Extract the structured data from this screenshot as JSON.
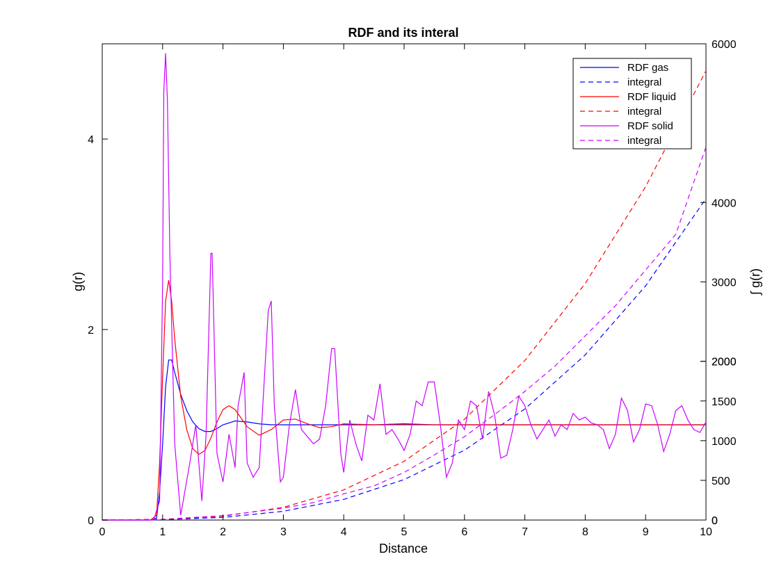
{
  "chart_data": {
    "type": "line",
    "title": "RDF and its interal",
    "xlabel": "Distance",
    "ylabel_left": "g(r)",
    "ylabel_right": "∫ g(r)",
    "xlim": [
      0,
      10
    ],
    "ylim_left": [
      0,
      5
    ],
    "ylim_right": [
      0,
      6000
    ],
    "x_ticks": [
      "0",
      "1",
      "2",
      "3",
      "4",
      "5",
      "6",
      "7",
      "8",
      "9",
      "10"
    ],
    "y_left_ticks": [
      "0",
      "2",
      "4"
    ],
    "y_right_ticks": [
      "0",
      "0",
      "500",
      "1000",
      "1500",
      "2000",
      "2000",
      "3000",
      "4000",
      "6000"
    ],
    "grid": false,
    "legend_position": "top-right",
    "series": [
      {
        "name": "RDF gas",
        "axis": "left",
        "style": "solid",
        "color": "#0000ff",
        "x": [
          0,
          0.8,
          0.9,
          0.95,
          1.0,
          1.05,
          1.1,
          1.15,
          1.2,
          1.3,
          1.4,
          1.5,
          1.6,
          1.7,
          1.8,
          1.9,
          2.0,
          2.2,
          2.4,
          2.6,
          2.8,
          3.0,
          3.5,
          4.0,
          4.5,
          5.0,
          5.5,
          6,
          7,
          8,
          9,
          10
        ],
        "y": [
          0,
          0,
          0.02,
          0.3,
          0.8,
          1.4,
          1.68,
          1.68,
          1.55,
          1.32,
          1.15,
          1.03,
          0.96,
          0.93,
          0.93,
          0.96,
          1.0,
          1.04,
          1.03,
          1.01,
          1.0,
          1.0,
          1.0,
          1.0,
          1.0,
          1.01,
          1.0,
          1.0,
          1.0,
          1.0,
          1.0,
          1.0
        ]
      },
      {
        "name": "integral",
        "axis": "right",
        "style": "dashed",
        "color": "#0000ff",
        "x": [
          0,
          1,
          2,
          3,
          4,
          5,
          6,
          7,
          8,
          9,
          10
        ],
        "y": [
          0,
          4,
          33,
          110,
          260,
          510,
          880,
          1400,
          2080,
          2950,
          4050
        ]
      },
      {
        "name": "RDF liquid",
        "axis": "left",
        "style": "solid",
        "color": "#ff0000",
        "x": [
          0,
          0.8,
          0.9,
          0.95,
          1.0,
          1.05,
          1.1,
          1.15,
          1.2,
          1.3,
          1.4,
          1.5,
          1.6,
          1.7,
          1.8,
          1.9,
          2.0,
          2.1,
          2.2,
          2.4,
          2.6,
          2.8,
          3.0,
          3.2,
          3.4,
          3.6,
          3.8,
          4.0,
          4.5,
          5.0,
          6,
          7,
          8,
          9,
          10
        ],
        "y": [
          0,
          0,
          0.05,
          0.6,
          1.5,
          2.3,
          2.52,
          2.3,
          1.9,
          1.3,
          0.95,
          0.75,
          0.69,
          0.73,
          0.86,
          1.03,
          1.16,
          1.2,
          1.16,
          0.98,
          0.89,
          0.95,
          1.05,
          1.06,
          1.01,
          0.97,
          0.98,
          1.01,
          1.0,
          1.0,
          1.0,
          1.0,
          1.0,
          1.0,
          1.0
        ]
      },
      {
        "name": "integral",
        "axis": "right",
        "style": "dashed",
        "color": "#ff0000",
        "x": [
          0,
          1,
          2,
          3,
          4,
          5,
          6,
          7,
          8,
          9,
          10
        ],
        "y": [
          0,
          8,
          48,
          160,
          380,
          740,
          1270,
          2010,
          2980,
          4200,
          5660
        ]
      },
      {
        "name": "RDF solid",
        "axis": "left",
        "style": "solid",
        "color": "#cc00ff",
        "x": [
          0,
          0.85,
          0.95,
          1.0,
          1.02,
          1.05,
          1.08,
          1.12,
          1.2,
          1.3,
          1.45,
          1.55,
          1.65,
          1.72,
          1.8,
          1.82,
          1.9,
          2.0,
          2.1,
          2.2,
          2.25,
          2.35,
          2.4,
          2.5,
          2.6,
          2.75,
          2.8,
          2.85,
          2.95,
          3.0,
          3.1,
          3.2,
          3.3,
          3.5,
          3.6,
          3.7,
          3.8,
          3.85,
          3.95,
          4.0,
          4.1,
          4.2,
          4.3,
          4.4,
          4.5,
          4.6,
          4.7,
          4.8,
          4.9,
          5.0,
          5.1,
          5.2,
          5.3,
          5.4,
          5.5,
          5.6,
          5.7,
          5.8,
          5.9,
          6.0,
          6.1,
          6.2,
          6.3,
          6.4,
          6.5,
          6.6,
          6.7,
          6.8,
          6.9,
          7.0,
          7.1,
          7.2,
          7.3,
          7.4,
          7.5,
          7.6,
          7.7,
          7.8,
          7.9,
          8.0,
          8.1,
          8.2,
          8.3,
          8.4,
          8.5,
          8.6,
          8.7,
          8.8,
          8.9,
          9.0,
          9.1,
          9.2,
          9.3,
          9.4,
          9.5,
          9.6,
          9.7,
          9.8,
          9.9,
          10.0
        ],
        "y": [
          0,
          0,
          0.2,
          2.5,
          4.5,
          4.9,
          4.4,
          2.8,
          0.8,
          0.05,
          0.6,
          1.0,
          0.2,
          0.9,
          2.8,
          2.8,
          0.7,
          0.4,
          0.9,
          0.55,
          1.2,
          1.55,
          0.6,
          0.45,
          0.55,
          2.2,
          2.3,
          1.2,
          0.4,
          0.45,
          1.0,
          1.37,
          0.95,
          0.8,
          0.85,
          1.2,
          1.8,
          1.8,
          0.7,
          0.5,
          1.05,
          0.8,
          0.62,
          1.1,
          1.05,
          1.43,
          0.9,
          0.95,
          0.85,
          0.73,
          0.9,
          1.25,
          1.2,
          1.45,
          1.45,
          1.0,
          0.45,
          0.6,
          1.05,
          0.95,
          1.25,
          1.2,
          0.85,
          1.35,
          1.1,
          0.65,
          0.68,
          0.95,
          1.3,
          1.2,
          1.0,
          0.85,
          0.95,
          1.05,
          0.88,
          1.0,
          0.95,
          1.12,
          1.05,
          1.08,
          1.02,
          1.0,
          0.95,
          0.75,
          0.9,
          1.28,
          1.15,
          0.82,
          0.95,
          1.22,
          1.2,
          1.0,
          0.72,
          0.9,
          1.15,
          1.2,
          1.05,
          0.95,
          0.92,
          1.03
        ]
      },
      {
        "name": "integral",
        "axis": "right",
        "style": "dashed",
        "color": "#cc00ff",
        "x": [
          0,
          1,
          2,
          3,
          3.5,
          4,
          4.5,
          5,
          5.5,
          6,
          6.5,
          7,
          7.5,
          8,
          8.5,
          9,
          9.5,
          10
        ],
        "y": [
          0,
          10,
          55,
          150,
          220,
          330,
          430,
          600,
          820,
          1050,
          1330,
          1620,
          1940,
          2320,
          2700,
          3150,
          3600,
          4700
        ]
      }
    ]
  },
  "legend": {
    "entries": [
      {
        "label": "RDF gas",
        "color": "#0000ff",
        "style": "solid"
      },
      {
        "label": "integral",
        "color": "#0000ff",
        "style": "dashed"
      },
      {
        "label": "RDF liquid",
        "color": "#ff0000",
        "style": "solid"
      },
      {
        "label": "integral",
        "color": "#ff0000",
        "style": "dashed"
      },
      {
        "label": "RDF solid",
        "color": "#cc00ff",
        "style": "solid"
      },
      {
        "label": "integral",
        "color": "#cc00ff",
        "style": "dashed"
      }
    ]
  }
}
